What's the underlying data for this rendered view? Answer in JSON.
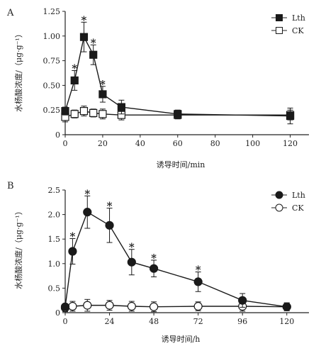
{
  "chart_data": [
    {
      "type": "line",
      "panel": "A",
      "xlabel": "诱导时间/min",
      "ylabel": "水杨酸浓度/（μg·g⁻¹）",
      "xlim": [
        0,
        130
      ],
      "ylim": [
        0,
        1.25
      ],
      "xticks": [
        "0",
        "20",
        "40",
        "60",
        "80",
        "100",
        "120"
      ],
      "yticks": [
        "0",
        "0.25",
        "0.50",
        "0.75",
        "1.00",
        "1.25"
      ],
      "marker": "square",
      "legend_position": "top-right",
      "series": [
        {
          "name": "Lth",
          "filled": true,
          "x": [
            0,
            5,
            10,
            15,
            20,
            30,
            60,
            120
          ],
          "y": [
            0.24,
            0.55,
            0.99,
            0.81,
            0.41,
            0.28,
            0.21,
            0.19
          ],
          "err": [
            0.04,
            0.1,
            0.15,
            0.1,
            0.08,
            0.07,
            0.04,
            0.08
          ],
          "significant": [
            false,
            true,
            true,
            true,
            true,
            false,
            false,
            false
          ]
        },
        {
          "name": "CK",
          "filled": false,
          "x": [
            0,
            5,
            10,
            15,
            20,
            30,
            60,
            120
          ],
          "y": [
            0.18,
            0.21,
            0.24,
            0.22,
            0.21,
            0.2,
            0.2,
            0.2
          ],
          "err": [
            0.05,
            0.04,
            0.05,
            0.04,
            0.05,
            0.05,
            0.04,
            0.05
          ]
        }
      ]
    },
    {
      "type": "line",
      "panel": "B",
      "xlabel": "诱导时间/h",
      "ylabel": "水杨酸浓度/（μg·g⁻¹）",
      "xlim": [
        0,
        132
      ],
      "ylim": [
        0,
        2.5
      ],
      "xticks": [
        "0",
        "24",
        "48",
        "72",
        "96",
        "120"
      ],
      "yticks": [
        "0",
        "0.5",
        "1.0",
        "1.5",
        "2.0",
        "2.5"
      ],
      "marker": "circle",
      "legend_position": "top-right",
      "series": [
        {
          "name": "Lth",
          "filled": true,
          "x": [
            0,
            4,
            12,
            24,
            36,
            48,
            72,
            96,
            120
          ],
          "y": [
            0.12,
            1.25,
            2.05,
            1.78,
            1.03,
            0.9,
            0.63,
            0.25,
            0.12
          ],
          "err": [
            0.05,
            0.26,
            0.33,
            0.35,
            0.26,
            0.17,
            0.2,
            0.14,
            0.08
          ],
          "significant": [
            false,
            true,
            true,
            true,
            true,
            true,
            true,
            false,
            false
          ]
        },
        {
          "name": "CK",
          "filled": false,
          "x": [
            0,
            4,
            12,
            24,
            36,
            48,
            72,
            96,
            120
          ],
          "y": [
            0.1,
            0.13,
            0.15,
            0.15,
            0.13,
            0.12,
            0.13,
            0.13,
            0.12
          ],
          "err": [
            0.08,
            0.1,
            0.12,
            0.1,
            0.1,
            0.1,
            0.09,
            0.1,
            0.08
          ]
        }
      ]
    }
  ]
}
